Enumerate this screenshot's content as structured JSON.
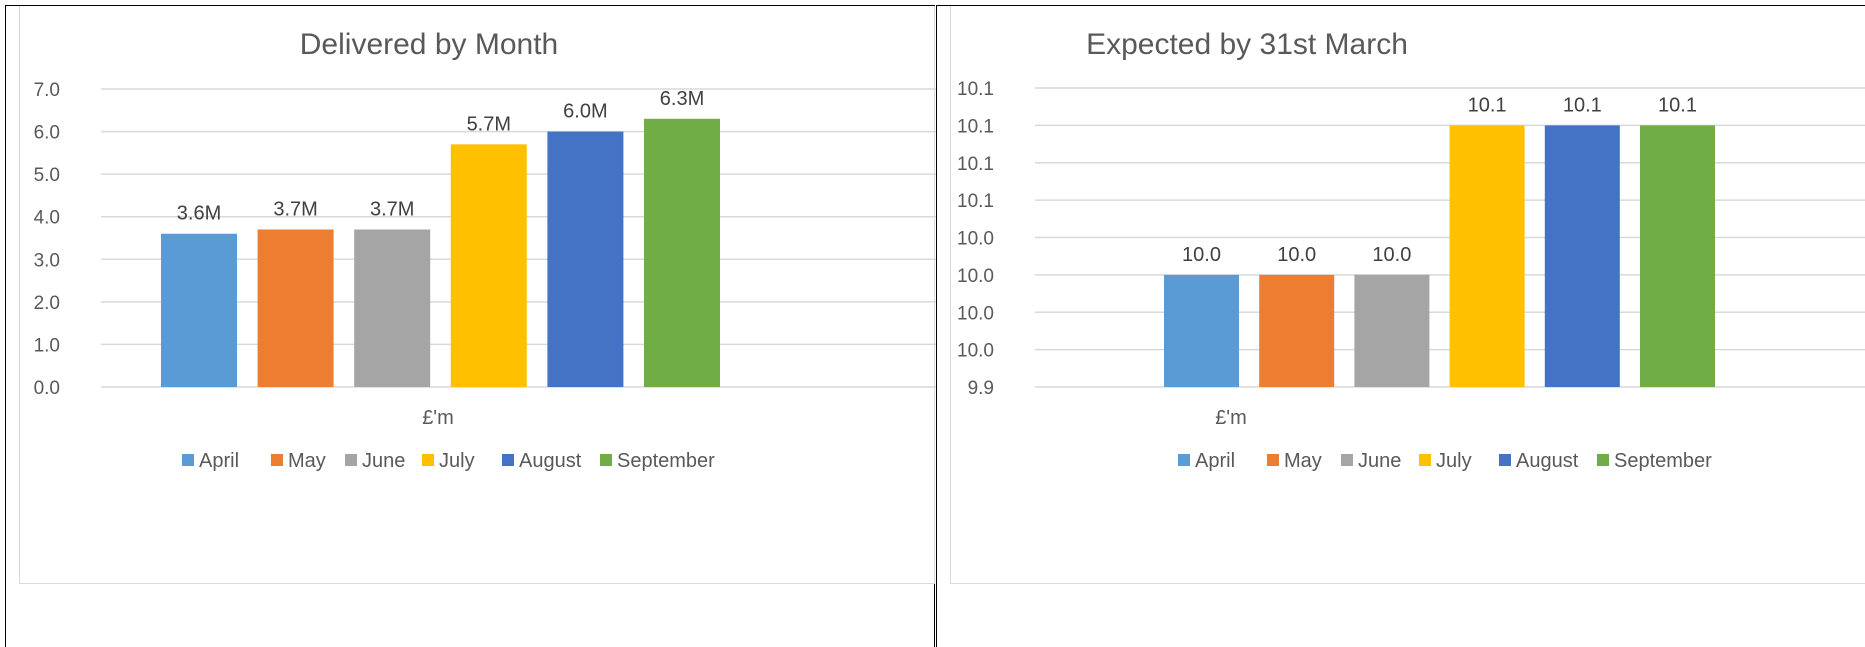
{
  "chart_data": [
    {
      "type": "bar",
      "title": "Delivered by Month",
      "xlabel": "£'m",
      "ylabel": "",
      "ylim": [
        0,
        7
      ],
      "yticks": [
        "0.0",
        "1.0",
        "2.0",
        "3.0",
        "4.0",
        "5.0",
        "6.0",
        "7.0"
      ],
      "legend_position": "bottom",
      "grid": true,
      "series": [
        {
          "name": "April",
          "value": 3.6,
          "label": "3.6M",
          "color": "#5B9BD5"
        },
        {
          "name": "May",
          "value": 3.7,
          "label": "3.7M",
          "color": "#ED7D31"
        },
        {
          "name": "June",
          "value": 3.7,
          "label": "3.7M",
          "color": "#A5A5A5"
        },
        {
          "name": "July",
          "value": 5.7,
          "label": "5.7M",
          "color": "#FFC000"
        },
        {
          "name": "August",
          "value": 6.0,
          "label": "6.0M",
          "color": "#4472C4"
        },
        {
          "name": "September",
          "value": 6.3,
          "label": "6.3M",
          "color": "#70AD47"
        }
      ]
    },
    {
      "type": "bar",
      "title": "Expected by 31st March",
      "xlabel": "£'m",
      "ylabel": "",
      "ylim": [
        9.92,
        10.08
      ],
      "yticks": [
        "9.9",
        "10.0",
        "10.0",
        "10.0",
        "10.0",
        "10.1",
        "10.1",
        "10.1",
        "10.1"
      ],
      "legend_position": "bottom",
      "grid": true,
      "series": [
        {
          "name": "April",
          "value": 9.98,
          "label": "10.0",
          "color": "#5B9BD5"
        },
        {
          "name": "May",
          "value": 9.98,
          "label": "10.0",
          "color": "#ED7D31"
        },
        {
          "name": "June",
          "value": 9.98,
          "label": "10.0",
          "color": "#A5A5A5"
        },
        {
          "name": "July",
          "value": 10.06,
          "label": "10.1",
          "color": "#FFC000"
        },
        {
          "name": "August",
          "value": 10.06,
          "label": "10.1",
          "color": "#4472C4"
        },
        {
          "name": "September",
          "value": 10.06,
          "label": "10.1",
          "color": "#70AD47"
        }
      ]
    }
  ]
}
